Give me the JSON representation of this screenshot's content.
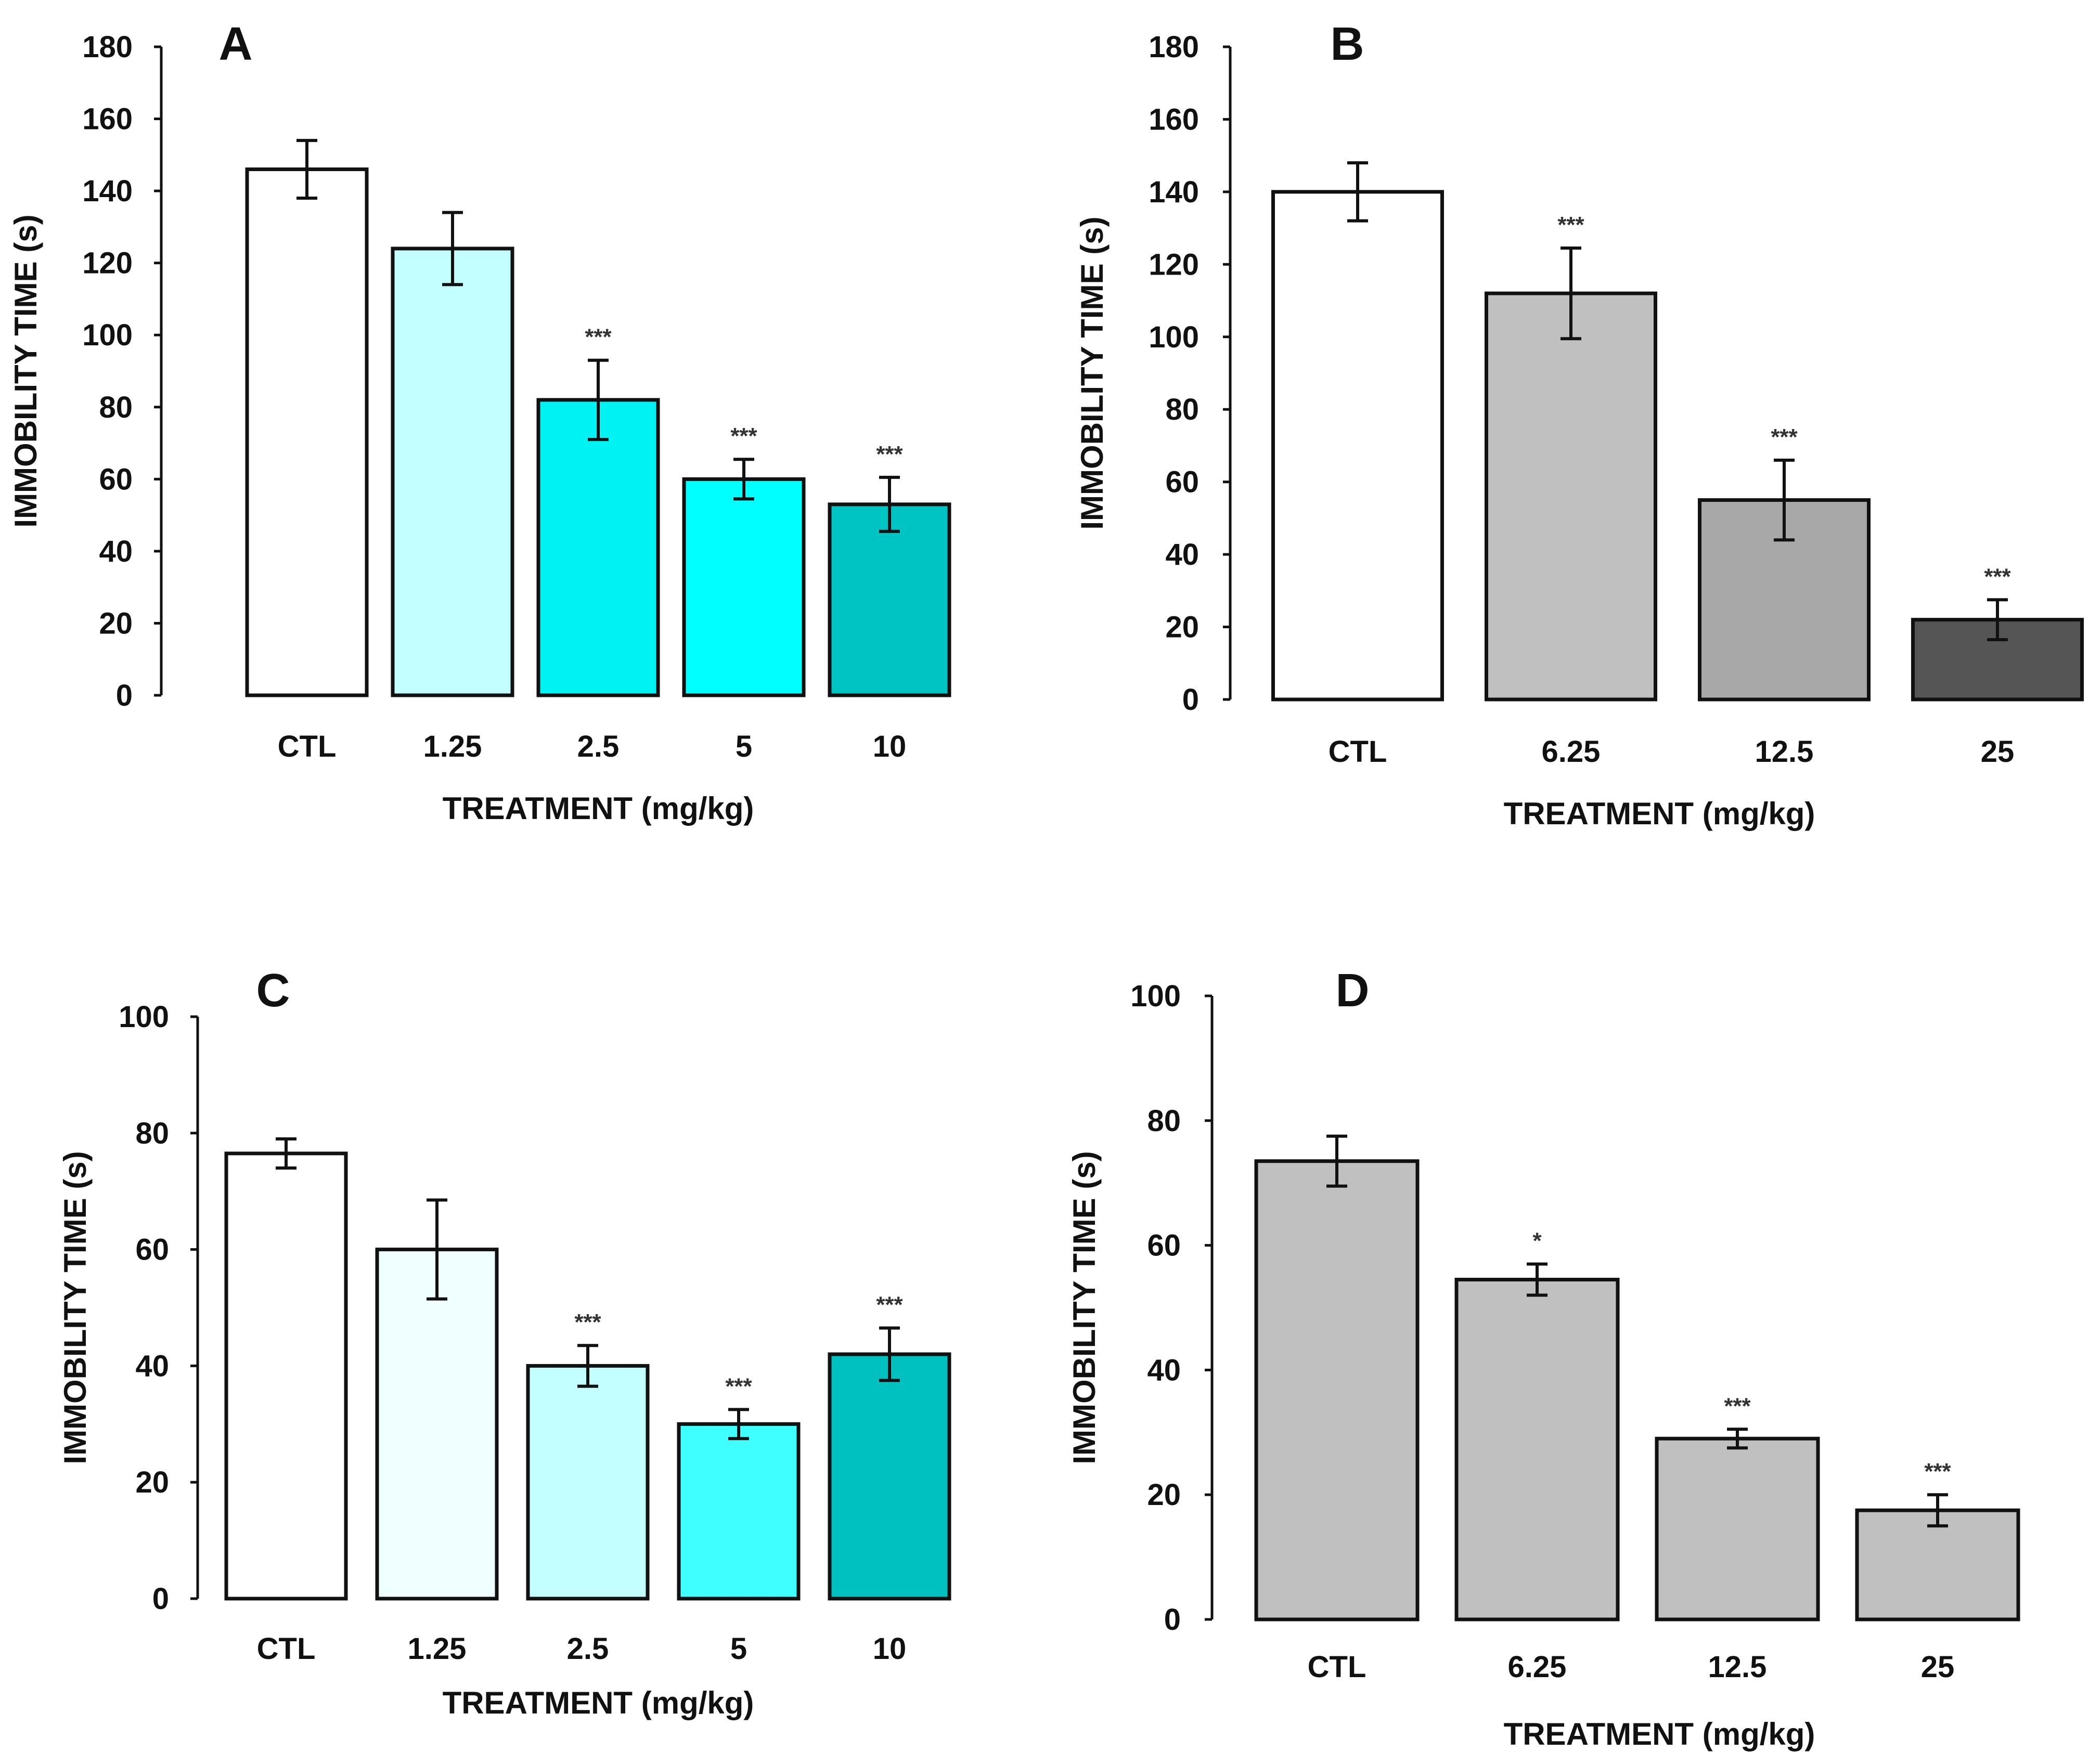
{
  "chart_data": [
    {
      "type": "bar",
      "panel": "A",
      "title": "A",
      "xlabel": "TREATMENT (mg/kg)",
      "ylabel": "IMMOBILITY TIME (s)",
      "ylim": [
        0,
        180
      ],
      "yticks": [
        0,
        20,
        40,
        60,
        80,
        100,
        120,
        140,
        160,
        180
      ],
      "categories": [
        "CTL",
        "1.25",
        "2.5",
        "5",
        "10"
      ],
      "values": [
        146,
        124,
        82,
        60,
        53
      ],
      "errors": [
        8,
        10,
        11,
        5.5,
        7.5
      ],
      "significance": [
        "",
        "",
        "***",
        "***",
        "***"
      ],
      "colors": [
        "#ffffff",
        "#c4ffff",
        "#00f2f2",
        "#00ffff",
        "#00c4c4"
      ]
    },
    {
      "type": "bar",
      "panel": "B",
      "title": "B",
      "xlabel": "TREATMENT (mg/kg)",
      "ylabel": "IMMOBILITY TIME (s)",
      "ylim": [
        0,
        180
      ],
      "yticks": [
        0,
        20,
        40,
        60,
        80,
        100,
        120,
        140,
        160,
        180
      ],
      "categories": [
        "CTL",
        "6.25",
        "12.5",
        "25"
      ],
      "values": [
        140,
        112,
        55,
        22
      ],
      "errors": [
        8,
        12.5,
        11,
        5.5
      ],
      "significance": [
        "",
        "***",
        "***",
        "***"
      ],
      "colors": [
        "#ffffff",
        "#c0c0c0",
        "#a8a8a8",
        "#555555"
      ]
    },
    {
      "type": "bar",
      "panel": "C",
      "title": "C",
      "xlabel": "TREATMENT (mg/kg)",
      "ylabel": "IMMOBILITY TIME (s)",
      "ylim": [
        0,
        100
      ],
      "yticks": [
        0,
        20,
        40,
        60,
        80,
        100
      ],
      "categories": [
        "CTL",
        "1.25",
        "2.5",
        "5",
        "10"
      ],
      "values": [
        76.5,
        60,
        40,
        30,
        42
      ],
      "errors": [
        2.5,
        8.5,
        3.5,
        2.5,
        4.5
      ],
      "significance": [
        "",
        "",
        "***",
        "***",
        "***"
      ],
      "colors": [
        "#ffffff",
        "#f0ffff",
        "#c4ffff",
        "#40ffff",
        "#00c0c0"
      ]
    },
    {
      "type": "bar",
      "panel": "D",
      "title": "D",
      "xlabel": "TREATMENT (mg/kg)",
      "ylabel": "IMMOBILITY TIME (s)",
      "ylim": [
        0,
        100
      ],
      "yticks": [
        0,
        20,
        40,
        60,
        80,
        100
      ],
      "categories": [
        "CTL",
        "6.25",
        "12.5",
        "25"
      ],
      "values": [
        73.5,
        54.5,
        29,
        17.5
      ],
      "errors": [
        4,
        2.5,
        1.5,
        2.5
      ],
      "significance": [
        "",
        "*",
        "***",
        "***"
      ],
      "colors": [
        "#c0c0c0",
        "#c0c0c0",
        "#c0c0c0",
        "#c0c0c0"
      ]
    }
  ]
}
